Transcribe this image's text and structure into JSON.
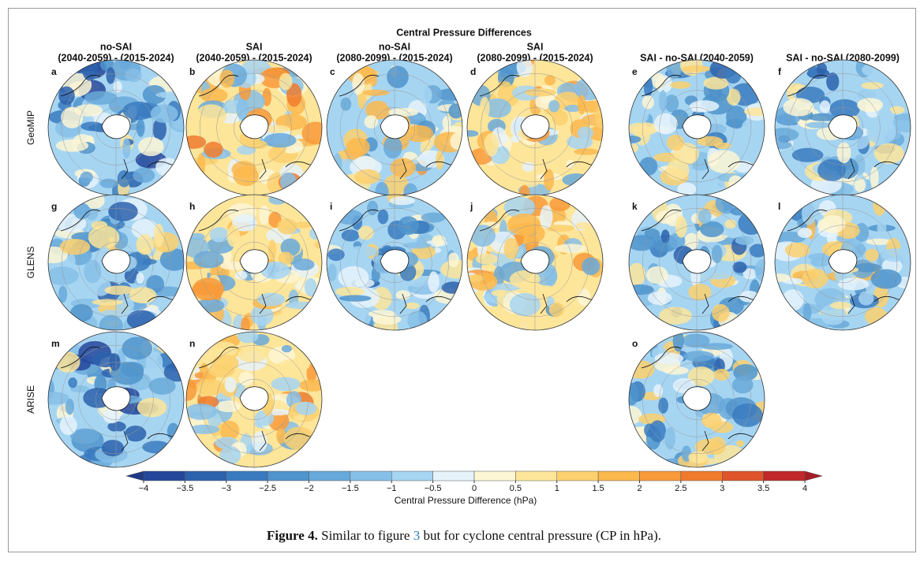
{
  "figure": {
    "title": "Central Pressure Differences",
    "columns": [
      {
        "lines": [
          "no-SAI",
          "(2040-2059) - (2015-2024)"
        ]
      },
      {
        "lines": [
          "SAI",
          "(2040-2059) - (2015-2024)"
        ]
      },
      {
        "lines": [
          "no-SAI",
          "(2080-2099) - (2015-2024)"
        ]
      },
      {
        "lines": [
          "SAI",
          "(2080-2099) - (2015-2024)"
        ]
      },
      {
        "lines": [
          "SAI - no-SAI (2040-2059)"
        ]
      },
      {
        "lines": [
          "SAI - no-SAI (2080-2099)"
        ]
      }
    ],
    "rows": [
      {
        "label": "GeoMIP",
        "panels": [
          "a",
          "b",
          "c",
          "d",
          "e",
          "f"
        ]
      },
      {
        "label": "GLENS",
        "panels": [
          "g",
          "h",
          "i",
          "j",
          "k",
          "l"
        ]
      },
      {
        "label": "ARISE",
        "panels": [
          "m",
          "n",
          null,
          null,
          "o",
          null
        ]
      }
    ],
    "colorbar": {
      "label": "Central Pressure Difference (hPa)",
      "ticks": [
        {
          "value": -4,
          "label": "−4"
        },
        {
          "value": -3.5,
          "label": "−3.5"
        },
        {
          "value": -3,
          "label": "−3"
        },
        {
          "value": -2.5,
          "label": "−2.5"
        },
        {
          "value": -2,
          "label": "−2"
        },
        {
          "value": -1.5,
          "label": "−1.5"
        },
        {
          "value": -1,
          "label": "−1"
        },
        {
          "value": -0.5,
          "label": "−0.5"
        },
        0,
        0.5,
        1,
        1.5,
        2,
        2.5,
        3,
        3.5,
        4
      ],
      "colors": [
        "#24479b",
        "#2d62ad",
        "#3a7bbf",
        "#4f94cd",
        "#68a9db",
        "#86c0e8",
        "#a6d5f2",
        "#e6f3fb",
        "#fdf6d5",
        "#fde59a",
        "#fcd06e",
        "#fbb84d",
        "#f89a3a",
        "#f07b2d",
        "#e0542b",
        "#c0282a"
      ],
      "extend_colors": [
        "#1c3a85",
        "#a51c24"
      ]
    },
    "caption": {
      "label": "Figure 4.",
      "text_before": " Similar to figure ",
      "ref": "3",
      "text_after": " but for cyclone central pressure (CP in hPa)."
    }
  }
}
